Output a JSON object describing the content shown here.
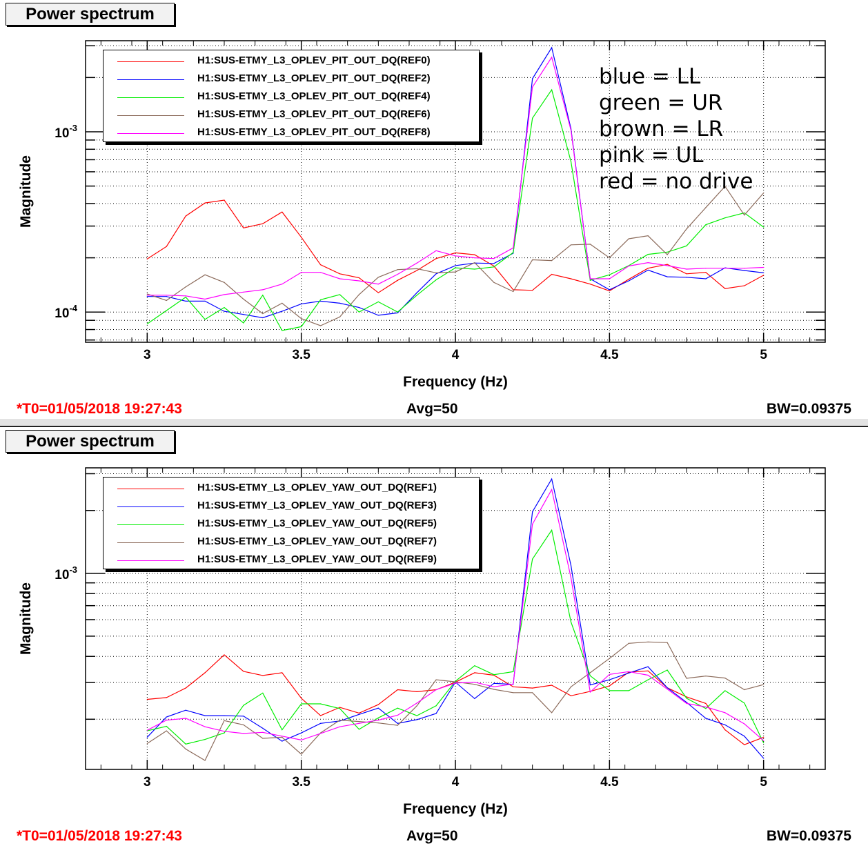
{
  "panels": [
    {
      "title": "Power spectrum",
      "footer": {
        "t0": "*T0=01/05/2018 19:27:43",
        "avg": "Avg=50",
        "bw": "BW=0.09375"
      },
      "annotation": [
        "blue = LL",
        "green = UR",
        "brown = LR",
        "pink = UL",
        "red = no drive"
      ]
    },
    {
      "title": "Power spectrum",
      "footer": {
        "t0": "*T0=01/05/2018 19:27:43",
        "avg": "Avg=50",
        "bw": "BW=0.09375"
      },
      "annotation": []
    }
  ],
  "chart_data": [
    {
      "type": "line",
      "title": "Power spectrum",
      "xlabel": "Frequency (Hz)",
      "ylabel": "Magnitude",
      "yscale": "log",
      "xlim": [
        2.8,
        5.2
      ],
      "ylim": [
        6.8e-05,
        0.0032
      ],
      "xticks": [
        3,
        3.5,
        4,
        4.5,
        5
      ],
      "xtick_labels": [
        "3",
        "3.5",
        "4",
        "4.5",
        "5"
      ],
      "ytick_labels": [
        {
          "base": "10",
          "exp": "-3",
          "value": 0.001
        },
        {
          "base": "10",
          "exp": "-4",
          "value": 0.0001
        }
      ],
      "grid": true,
      "legend_position": "top-left",
      "x": [
        3,
        3.0625,
        3.125,
        3.1875,
        3.25,
        3.3125,
        3.375,
        3.4375,
        3.5,
        3.5625,
        3.625,
        3.6875,
        3.75,
        3.8125,
        3.875,
        3.9375,
        4,
        4.0625,
        4.125,
        4.1875,
        4.25,
        4.3125,
        4.375,
        4.4375,
        4.5,
        4.5625,
        4.625,
        4.6875,
        4.75,
        4.8125,
        4.875,
        4.9375,
        5
      ],
      "series": [
        {
          "name": "H1:SUS-ETMY_L3_OPLEV_PIT_OUT_DQ(REF0)",
          "color": "#ff0000",
          "values": [
            0.000197,
            0.000231,
            0.000341,
            0.000403,
            0.000418,
            0.000293,
            0.000309,
            0.000359,
            0.00026,
            0.000183,
            0.000163,
            0.000155,
            0.000128,
            0.00015,
            0.00017,
            0.000198,
            0.000213,
            0.000208,
            0.00018,
            0.000133,
            0.000132,
            0.000162,
            0.000153,
            0.000143,
            0.000131,
            0.000152,
            0.000175,
            0.000184,
            0.000163,
            0.000166,
            0.000135,
            0.00014,
            0.00016
          ]
        },
        {
          "name": "H1:SUS-ETMY_L3_OPLEV_PIT_OUT_DQ(REF2)",
          "color": "#0000ff",
          "values": [
            0.000122,
            0.000122,
            0.000115,
            0.000115,
            0.000101,
            9.7e-05,
            9.3e-05,
            0.000101,
            0.000111,
            0.000115,
            0.000112,
            0.000106,
            9.6e-05,
            9.9e-05,
            0.000128,
            0.000163,
            0.000181,
            0.000187,
            0.000186,
            0.000212,
            0.00197,
            0.00293,
            0.00104,
            0.000153,
            0.000133,
            0.000149,
            0.000171,
            0.000157,
            0.000156,
            0.000153,
            0.000176,
            0.00017,
            0.000165
          ]
        },
        {
          "name": "H1:SUS-ETMY_L3_OPLEV_PIT_OUT_DQ(REF4)",
          "color": "#00ee00",
          "values": [
            8.6e-05,
            0.000102,
            0.000121,
            9.1e-05,
            0.000106,
            8.7e-05,
            0.000124,
            7.9e-05,
            8.3e-05,
            0.000117,
            0.000125,
            0.0001,
            0.000114,
            0.0001,
            0.000124,
            0.000151,
            0.000176,
            0.000173,
            0.000178,
            0.000214,
            0.00119,
            0.00171,
            0.000684,
            0.00015,
            0.000161,
            0.000181,
            0.000209,
            0.000215,
            0.000233,
            0.000305,
            0.000333,
            0.000355,
            0.000296
          ]
        },
        {
          "name": "H1:SUS-ETMY_L3_OPLEV_PIT_OUT_DQ(REF6)",
          "color": "#8b6a5a",
          "values": [
            0.000126,
            0.000116,
            0.000138,
            0.000161,
            0.000146,
            0.000118,
            9.8e-05,
            0.000112,
            9.2e-05,
            8.4e-05,
            9.4e-05,
            0.000125,
            0.000156,
            0.000172,
            0.000174,
            0.000165,
            0.000167,
            0.000188,
            0.000146,
            0.00013,
            0.000195,
            0.000193,
            0.000236,
            0.000238,
            0.0002,
            0.000255,
            0.000265,
            0.000208,
            0.000289,
            0.00038,
            0.000498,
            0.000345,
            0.000458
          ]
        },
        {
          "name": "H1:SUS-ETMY_L3_OPLEV_PIT_OUT_DQ(REF8)",
          "color": "#ff00ff",
          "values": [
            0.000124,
            0.000124,
            0.000123,
            0.000118,
            0.000125,
            0.000129,
            0.000133,
            0.000143,
            0.000166,
            0.000166,
            0.000153,
            0.000149,
            0.000143,
            0.000162,
            0.000187,
            0.000219,
            0.000205,
            0.0002,
            0.000198,
            0.000227,
            0.00177,
            0.00259,
            0.00102,
            0.000153,
            0.000153,
            0.00018,
            0.000188,
            0.000181,
            0.000173,
            0.000175,
            0.000175,
            0.000175,
            0.000177
          ]
        }
      ]
    },
    {
      "type": "line",
      "title": "Power spectrum",
      "xlabel": "Frequency (Hz)",
      "ylabel": "Magnitude",
      "yscale": "log",
      "xlim": [
        2.8,
        5.2
      ],
      "ylim": [
        0.000115,
        0.0032
      ],
      "xticks": [
        3,
        3.5,
        4,
        4.5,
        5
      ],
      "xtick_labels": [
        "3",
        "3.5",
        "4",
        "4.5",
        "5"
      ],
      "ytick_labels": [
        {
          "base": "10",
          "exp": "-3",
          "value": 0.001
        }
      ],
      "grid": true,
      "legend_position": "top-left",
      "x": [
        3,
        3.0625,
        3.125,
        3.1875,
        3.25,
        3.3125,
        3.375,
        3.4375,
        3.5,
        3.5625,
        3.625,
        3.6875,
        3.75,
        3.8125,
        3.875,
        3.9375,
        4,
        4.0625,
        4.125,
        4.1875,
        4.25,
        4.3125,
        4.375,
        4.4375,
        4.5,
        4.5625,
        4.625,
        4.6875,
        4.75,
        4.8125,
        4.875,
        4.9375,
        5
      ],
      "series": [
        {
          "name": "H1:SUS-ETMY_L3_OPLEV_YAW_OUT_DQ(REF1)",
          "color": "#ff0000",
          "values": [
            0.000249,
            0.000254,
            0.000282,
            0.000334,
            0.000407,
            0.000339,
            0.000324,
            0.000334,
            0.000252,
            0.000208,
            0.000228,
            0.000214,
            0.000235,
            0.000277,
            0.000271,
            0.000277,
            0.000301,
            0.000334,
            0.000325,
            0.000286,
            0.000282,
            0.000291,
            0.000259,
            0.000272,
            0.000289,
            0.000336,
            0.000341,
            0.000283,
            0.000256,
            0.000238,
            0.000178,
            0.000151,
            0.000164
          ]
        },
        {
          "name": "H1:SUS-ETMY_L3_OPLEV_YAW_OUT_DQ(REF3)",
          "color": "#0000ff",
          "values": [
            0.000164,
            0.000205,
            0.000221,
            0.000208,
            0.000208,
            0.000207,
            0.000181,
            0.000157,
            0.000172,
            0.000191,
            0.000196,
            0.000211,
            0.000226,
            0.000191,
            0.000199,
            0.000213,
            0.000301,
            0.000251,
            0.000297,
            0.000294,
            0.00197,
            0.00283,
            0.00109,
            0.000292,
            0.000309,
            0.000333,
            0.000357,
            0.000283,
            0.000241,
            0.000202,
            0.000188,
            0.000166,
            0.00013
          ]
        },
        {
          "name": "H1:SUS-ETMY_L3_OPLEV_YAW_OUT_DQ(REF5)",
          "color": "#00ee00",
          "values": [
            0.000176,
            0.000185,
            0.000152,
            0.00016,
            0.000172,
            0.000233,
            0.000267,
            0.000178,
            0.000237,
            0.000237,
            0.000225,
            0.000179,
            0.000203,
            0.000226,
            0.000208,
            0.000232,
            0.000304,
            0.000361,
            0.000327,
            0.000338,
            0.00117,
            0.00161,
            0.000585,
            0.000323,
            0.000274,
            0.000274,
            0.000309,
            0.000344,
            0.000252,
            0.000225,
            0.000274,
            0.000239,
            0.000154
          ]
        },
        {
          "name": "H1:SUS-ETMY_L3_OPLEV_YAW_OUT_DQ(REF7)",
          "color": "#8b6a5a",
          "values": [
            0.000153,
            0.000176,
            0.000144,
            0.000127,
            0.000197,
            0.000188,
            0.000162,
            0.000164,
            0.000136,
            0.000172,
            0.000198,
            0.000195,
            0.000192,
            0.000187,
            0.000232,
            0.000309,
            0.000302,
            0.000294,
            0.000278,
            0.000268,
            0.000268,
            0.000215,
            0.000286,
            0.000334,
            0.000391,
            0.000462,
            0.000469,
            0.000466,
            0.000314,
            0.000322,
            0.000315,
            0.000277,
            0.000293
          ]
        },
        {
          "name": "H1:SUS-ETMY_L3_OPLEV_YAW_OUT_DQ(REF9)",
          "color": "#ff00ff",
          "values": [
            0.000177,
            0.000198,
            0.000202,
            0.000184,
            0.000175,
            0.000171,
            0.000173,
            0.000166,
            0.000159,
            0.000171,
            0.000184,
            0.000191,
            0.000198,
            0.000209,
            0.000239,
            0.000277,
            0.000298,
            0.000301,
            0.000286,
            0.000295,
            0.00172,
            0.00252,
            0.000952,
            0.00027,
            0.000328,
            0.000338,
            0.000325,
            0.000279,
            0.000238,
            0.000229,
            0.000215,
            0.00019,
            0.000158
          ]
        }
      ]
    }
  ]
}
